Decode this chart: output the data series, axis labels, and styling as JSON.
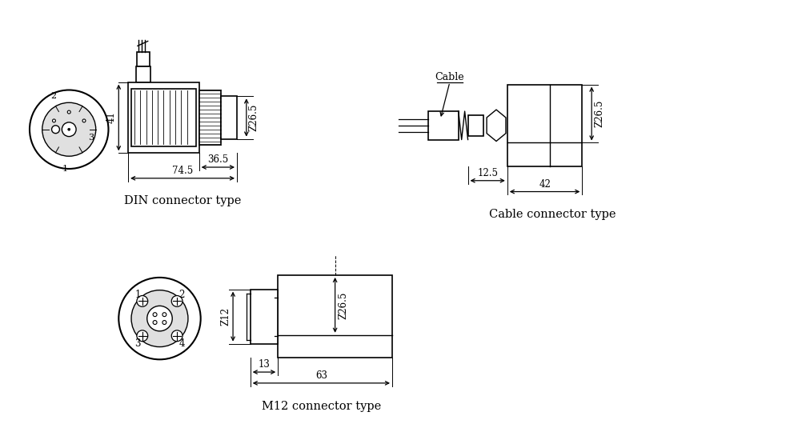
{
  "bg_color": "#ffffff",
  "line_color": "#000000",
  "din_label": "DIN connector type",
  "cable_label": "Cable connector type",
  "m12_label": "M12 connector type",
  "din_phi": "Ζ26.5",
  "din_h": "41",
  "din_w1": "36.5",
  "din_w2": "74.5",
  "cable_phi": "Ζ26.5",
  "cable_w1": "12.5",
  "cable_w2": "42",
  "m12_phi_big": "Ζ26.5",
  "m12_phi_small": "Ζ12",
  "m12_w1": "13",
  "m12_w2": "63",
  "cable_annotation": "Cable"
}
